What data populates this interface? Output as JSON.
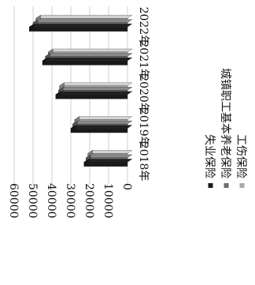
{
  "chart_data": {
    "type": "bar",
    "orientation": "3d-clustered-column-rotated-90-clockwise",
    "categories": [
      "2018年",
      "2019年",
      "2020年",
      "2021年",
      "2022年"
    ],
    "series": [
      {
        "name": "失业保险",
        "values": [
          23000,
          30000,
          38000,
          45000,
          52000
        ],
        "color": "#1a1a1a"
      },
      {
        "name": "城镇职工基本养老保险",
        "values": [
          22000,
          29000,
          36500,
          43500,
          50000
        ],
        "color": "#6e6e6e"
      },
      {
        "name": "工伤保险",
        "values": [
          21000,
          28000,
          36000,
          42000,
          48500
        ],
        "color": "#a8a8a8"
      }
    ],
    "value_axis": {
      "ticks": [
        0,
        10000,
        20000,
        30000,
        40000,
        50000,
        60000
      ],
      "tick_labels": [
        "0",
        "10000",
        "20000",
        "30000",
        "40000",
        "50000",
        "60000"
      ],
      "range": [
        0,
        60000
      ]
    },
    "title": "",
    "xlabel": "",
    "ylabel": "",
    "gridlines": true,
    "legend_position": "right"
  }
}
